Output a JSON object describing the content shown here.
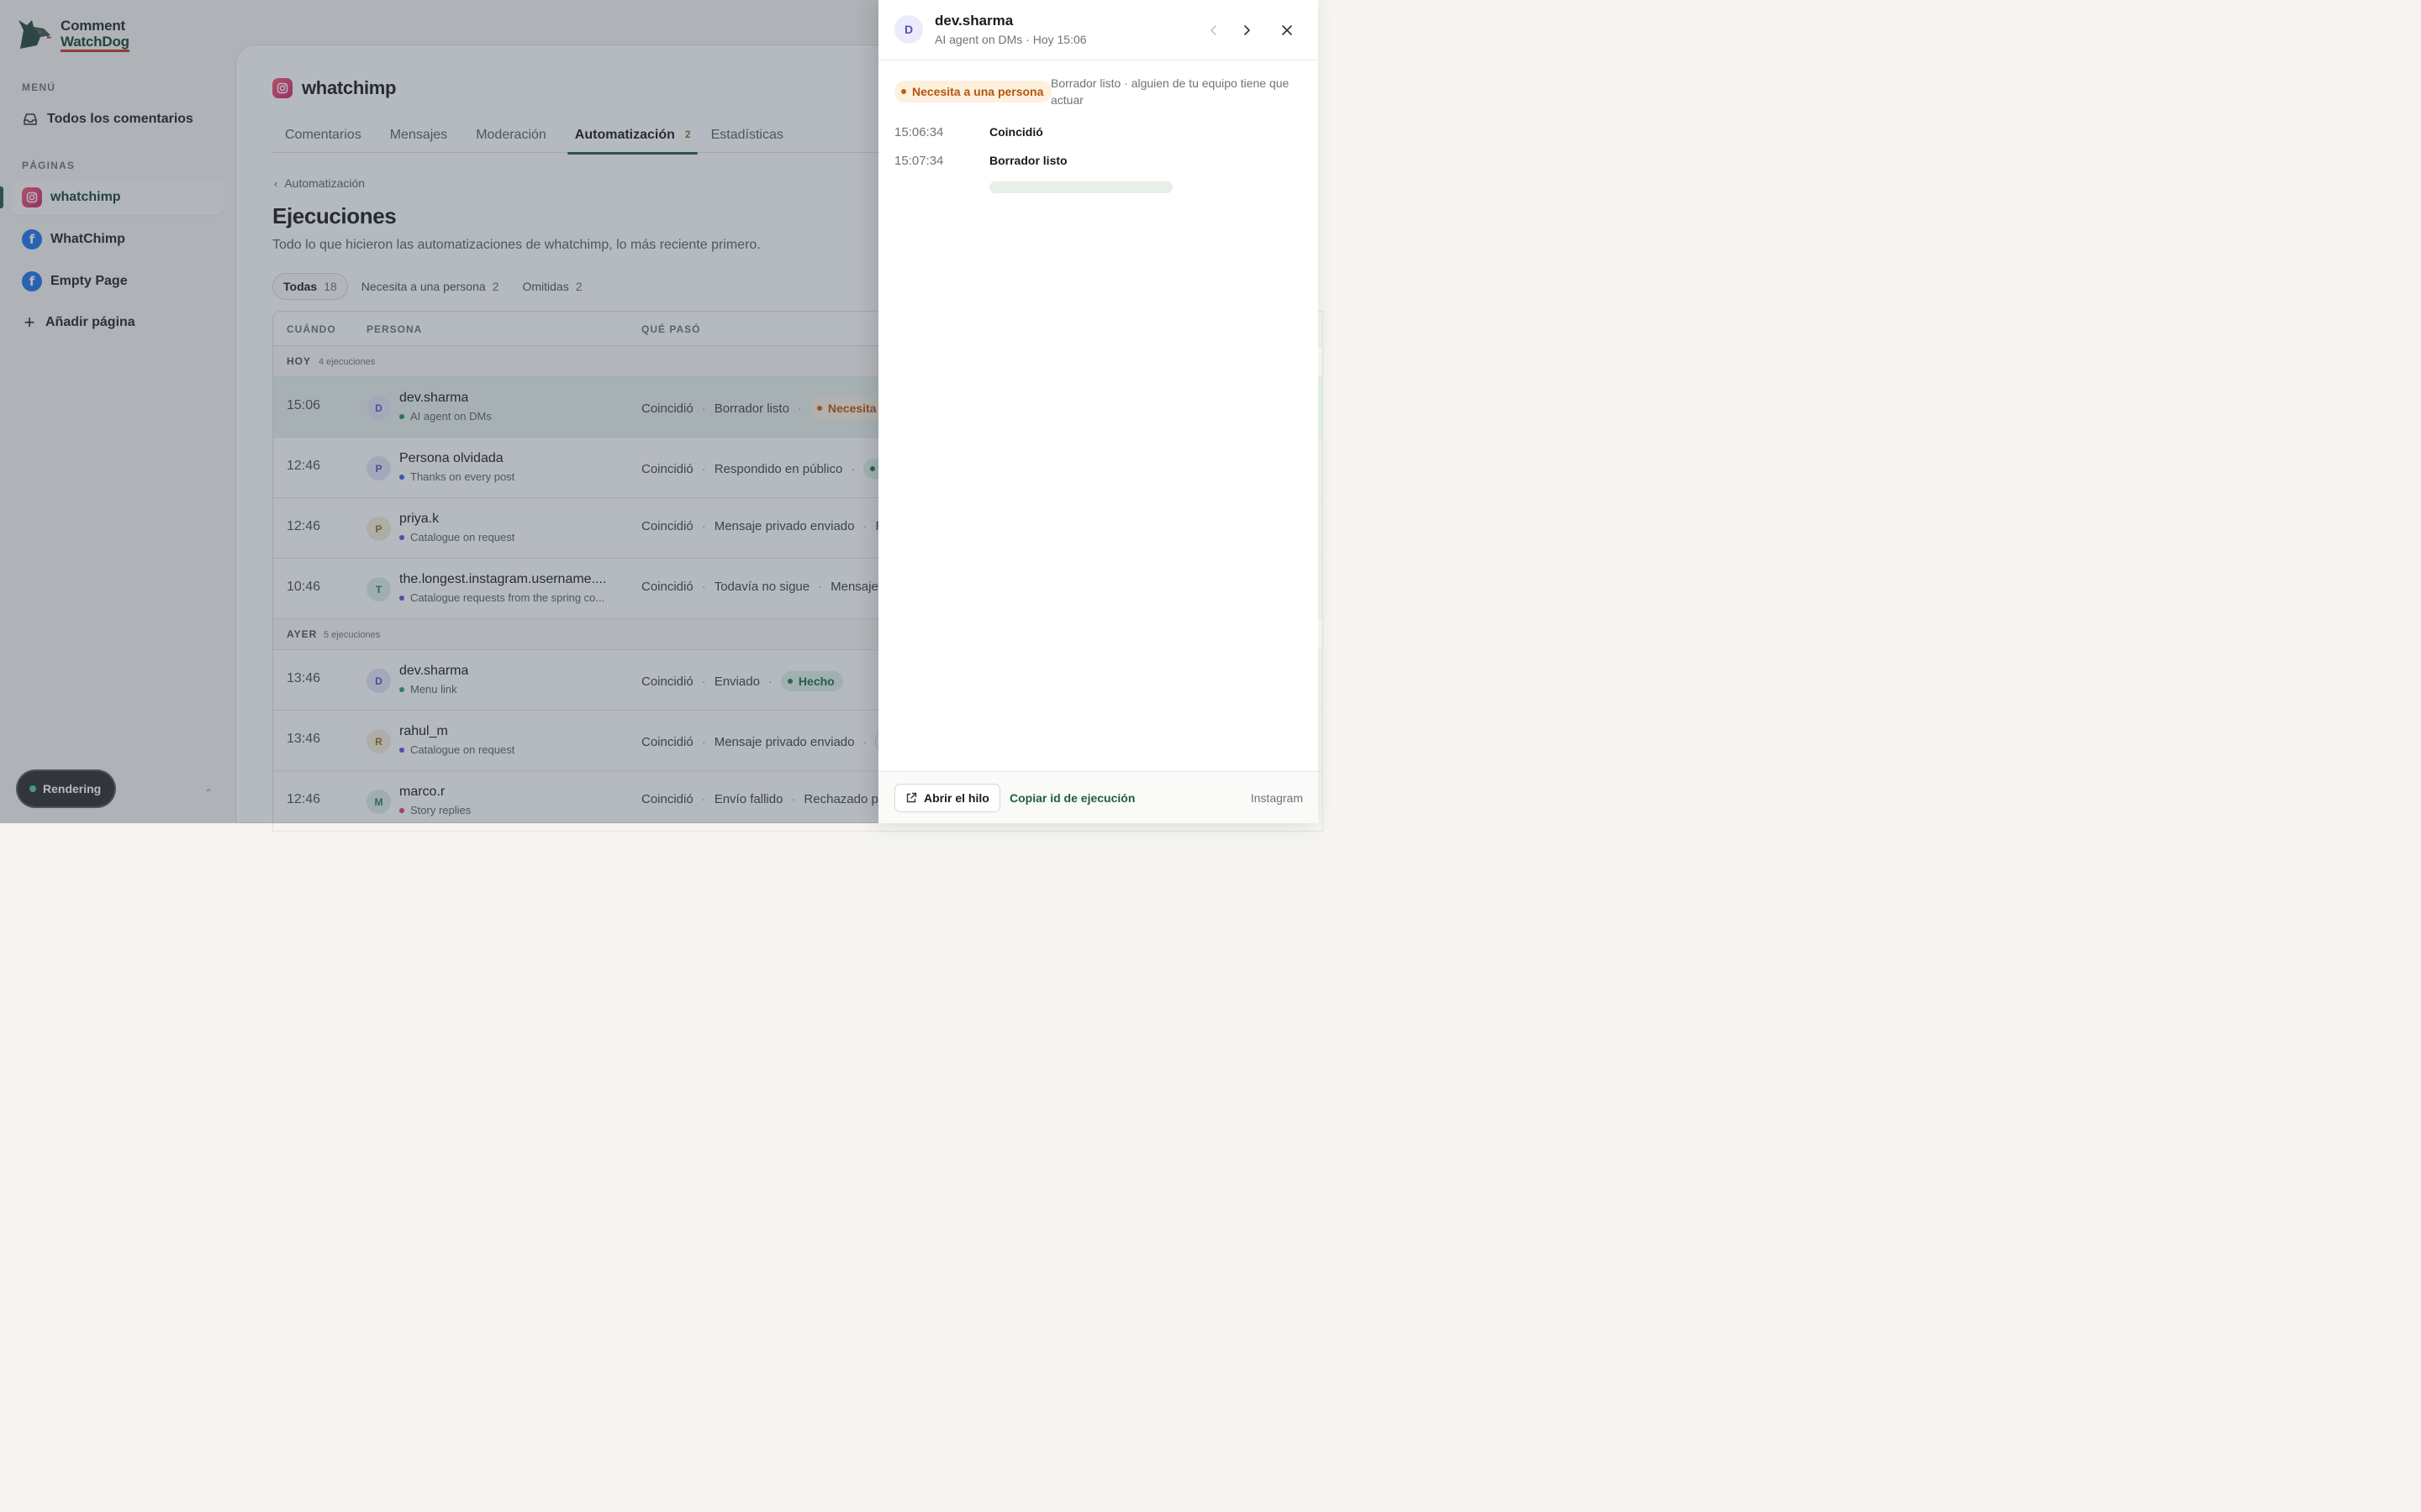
{
  "brand": {
    "line1": "Comment",
    "line2": "WatchDog"
  },
  "sidebar": {
    "menu_label": "MENÚ",
    "all_comments": "Todos los comentarios",
    "pages_label": "PÁGINAS",
    "pages": [
      {
        "label": "whatchimp",
        "platform": "instagram",
        "active": true
      },
      {
        "label": "WhatChimp",
        "platform": "facebook",
        "active": false
      },
      {
        "label": "Empty Page",
        "platform": "facebook",
        "active": false
      }
    ],
    "add_page": "Añadir página",
    "render_status": "Rendering"
  },
  "page": {
    "name": "whatchimp",
    "tabs": [
      {
        "label": "Comentarios"
      },
      {
        "label": "Mensajes"
      },
      {
        "label": "Moderación"
      },
      {
        "label": "Automatización",
        "badge": "2",
        "active": true
      },
      {
        "label": "Estadísticas"
      }
    ],
    "breadcrumb": "Automatización",
    "title": "Ejecuciones",
    "subtitle": "Todo lo que hicieron las automatizaciones de whatchimp, lo más reciente primero.",
    "filters": [
      {
        "label": "Todas",
        "count": "18",
        "active": true
      },
      {
        "label": "Necesita a una persona",
        "count": "2"
      },
      {
        "label": "Omitidas",
        "count": "2"
      }
    ]
  },
  "table": {
    "headers": {
      "when": "CUÁNDO",
      "person": "PERSONA",
      "what": "QUÉ PASÓ"
    },
    "groups": [
      {
        "label": "HOY",
        "count": "4 ejecuciones",
        "rows": [
          {
            "time": "15:06",
            "initial": "D",
            "name": "dev.sharma",
            "automation": "AI agent on DMs",
            "dot": "#1f8a52",
            "steps": [
              "Coincidió",
              "Borrador listo"
            ],
            "pill": "Necesita a u",
            "pill_kind": "warn",
            "highlight": true,
            "av_bg": "#e6e4f7",
            "av_fg": "#5b4fc4"
          },
          {
            "time": "12:46",
            "initial": "P",
            "name": "Persona olvidada",
            "automation": "Thanks on every post",
            "dot": "#3b5fd1",
            "steps": [
              "Coincidió",
              "Respondido en público"
            ],
            "pill": "H",
            "pill_kind": "ok",
            "av_bg": "#e6e4f7",
            "av_fg": "#5b4fc4"
          },
          {
            "time": "12:46",
            "initial": "P",
            "name": "priya.k",
            "automation": "Catalogue on request",
            "dot": "#6b4fd8",
            "steps": [
              "Coincidió",
              "Mensaje privado enviado",
              "Re"
            ],
            "av_bg": "#f6ecd9",
            "av_fg": "#9a6a14"
          },
          {
            "time": "10:46",
            "initial": "T",
            "name": "the.longest.instagram.username....",
            "automation": "Catalogue requests from the spring co...",
            "dot": "#6b4fd8",
            "steps": [
              "Coincidió",
              "Todavía no sigue",
              "Mensaje p"
            ],
            "av_bg": "#dceee9",
            "av_fg": "#2b7a64"
          }
        ]
      },
      {
        "label": "AYER",
        "count": "5 ejecuciones",
        "rows": [
          {
            "time": "13:46",
            "initial": "D",
            "name": "dev.sharma",
            "automation": "Menu link",
            "dot": "#2a9a8a",
            "steps": [
              "Coincidió",
              "Enviado"
            ],
            "pill": "Hecho",
            "pill_kind": "ok",
            "av_bg": "#e6e4f7",
            "av_fg": "#5b4fc4"
          },
          {
            "time": "13:46",
            "initial": "R",
            "name": "rahul_m",
            "automation": "Catalogue on request",
            "dot": "#6b4fd8",
            "steps": [
              "Coincidió",
              "Mensaje privado enviado"
            ],
            "trail": "·",
            "av_bg": "#f6ecd9",
            "av_fg": "#9a6a14"
          },
          {
            "time": "12:46",
            "initial": "M",
            "name": "marco.r",
            "automation": "Story replies",
            "dot": "#d8425a",
            "steps": [
              "Coincidió",
              "Envío fallido",
              "Rechazado por"
            ],
            "av_bg": "#dceee9",
            "av_fg": "#2b7a64"
          }
        ]
      }
    ]
  },
  "drawer": {
    "initial": "D",
    "name": "dev.sharma",
    "subtitle": "AI agent on DMs · Hoy 15:06",
    "status": "Necesita a una persona",
    "status_note": "Borrador listo · alguien de tu equipo tiene que actuar",
    "steps": [
      {
        "time": "15:06:34",
        "label": "Coincidió"
      },
      {
        "time": "15:07:34",
        "label": "Borrador listo"
      }
    ],
    "open_thread": "Abrir el hilo",
    "copy_id": "Copiar id de ejecución",
    "source": "Instagram"
  }
}
